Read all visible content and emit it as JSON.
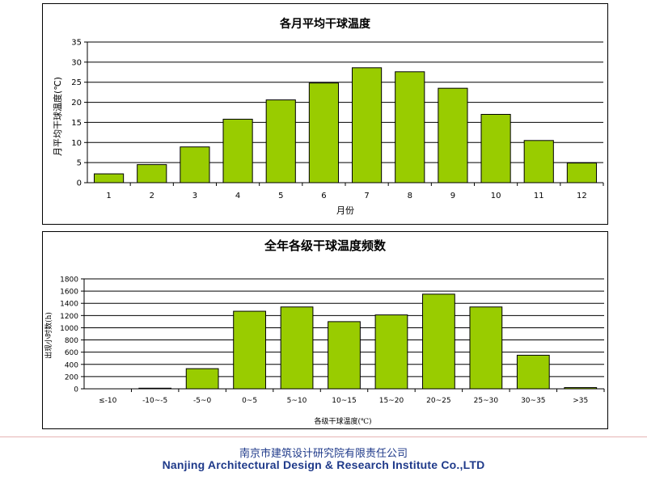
{
  "chart_data": [
    {
      "type": "bar",
      "title": "各月平均干球温度",
      "xlabel": "月份",
      "ylabel": "月平均干球温度(℃)",
      "categories": [
        "1",
        "2",
        "3",
        "4",
        "5",
        "6",
        "7",
        "8",
        "9",
        "10",
        "11",
        "12"
      ],
      "values": [
        2.2,
        4.5,
        8.9,
        15.8,
        20.6,
        24.8,
        28.6,
        27.6,
        23.5,
        17.0,
        10.5,
        4.9
      ],
      "ylim": [
        0,
        35
      ],
      "yticks": [
        0,
        5,
        10,
        15,
        20,
        25,
        30,
        35
      ],
      "grid": true,
      "bar_color": "#99cc00"
    },
    {
      "type": "bar",
      "title": "全年各级干球温度频数",
      "xlabel": "各级干球温度(℃)",
      "ylabel": "出现小时数(h)",
      "categories": [
        "≤-10",
        "-10~-5",
        "-5~0",
        "0~5",
        "5~10",
        "10~15",
        "15~20",
        "20~25",
        "25~30",
        "30~35",
        ">35"
      ],
      "values": [
        0,
        10,
        330,
        1270,
        1340,
        1100,
        1210,
        1550,
        1340,
        550,
        20
      ],
      "ylim": [
        0,
        1800
      ],
      "yticks": [
        0,
        200,
        400,
        600,
        800,
        1000,
        1200,
        1400,
        1600,
        1800
      ],
      "grid": true,
      "bar_color": "#99cc00"
    }
  ],
  "footer": {
    "company_cn": "南京市建筑设计研究院有限责任公司",
    "company_en": "Nanjing Architectural Design & Research Institute Co.,LTD"
  }
}
